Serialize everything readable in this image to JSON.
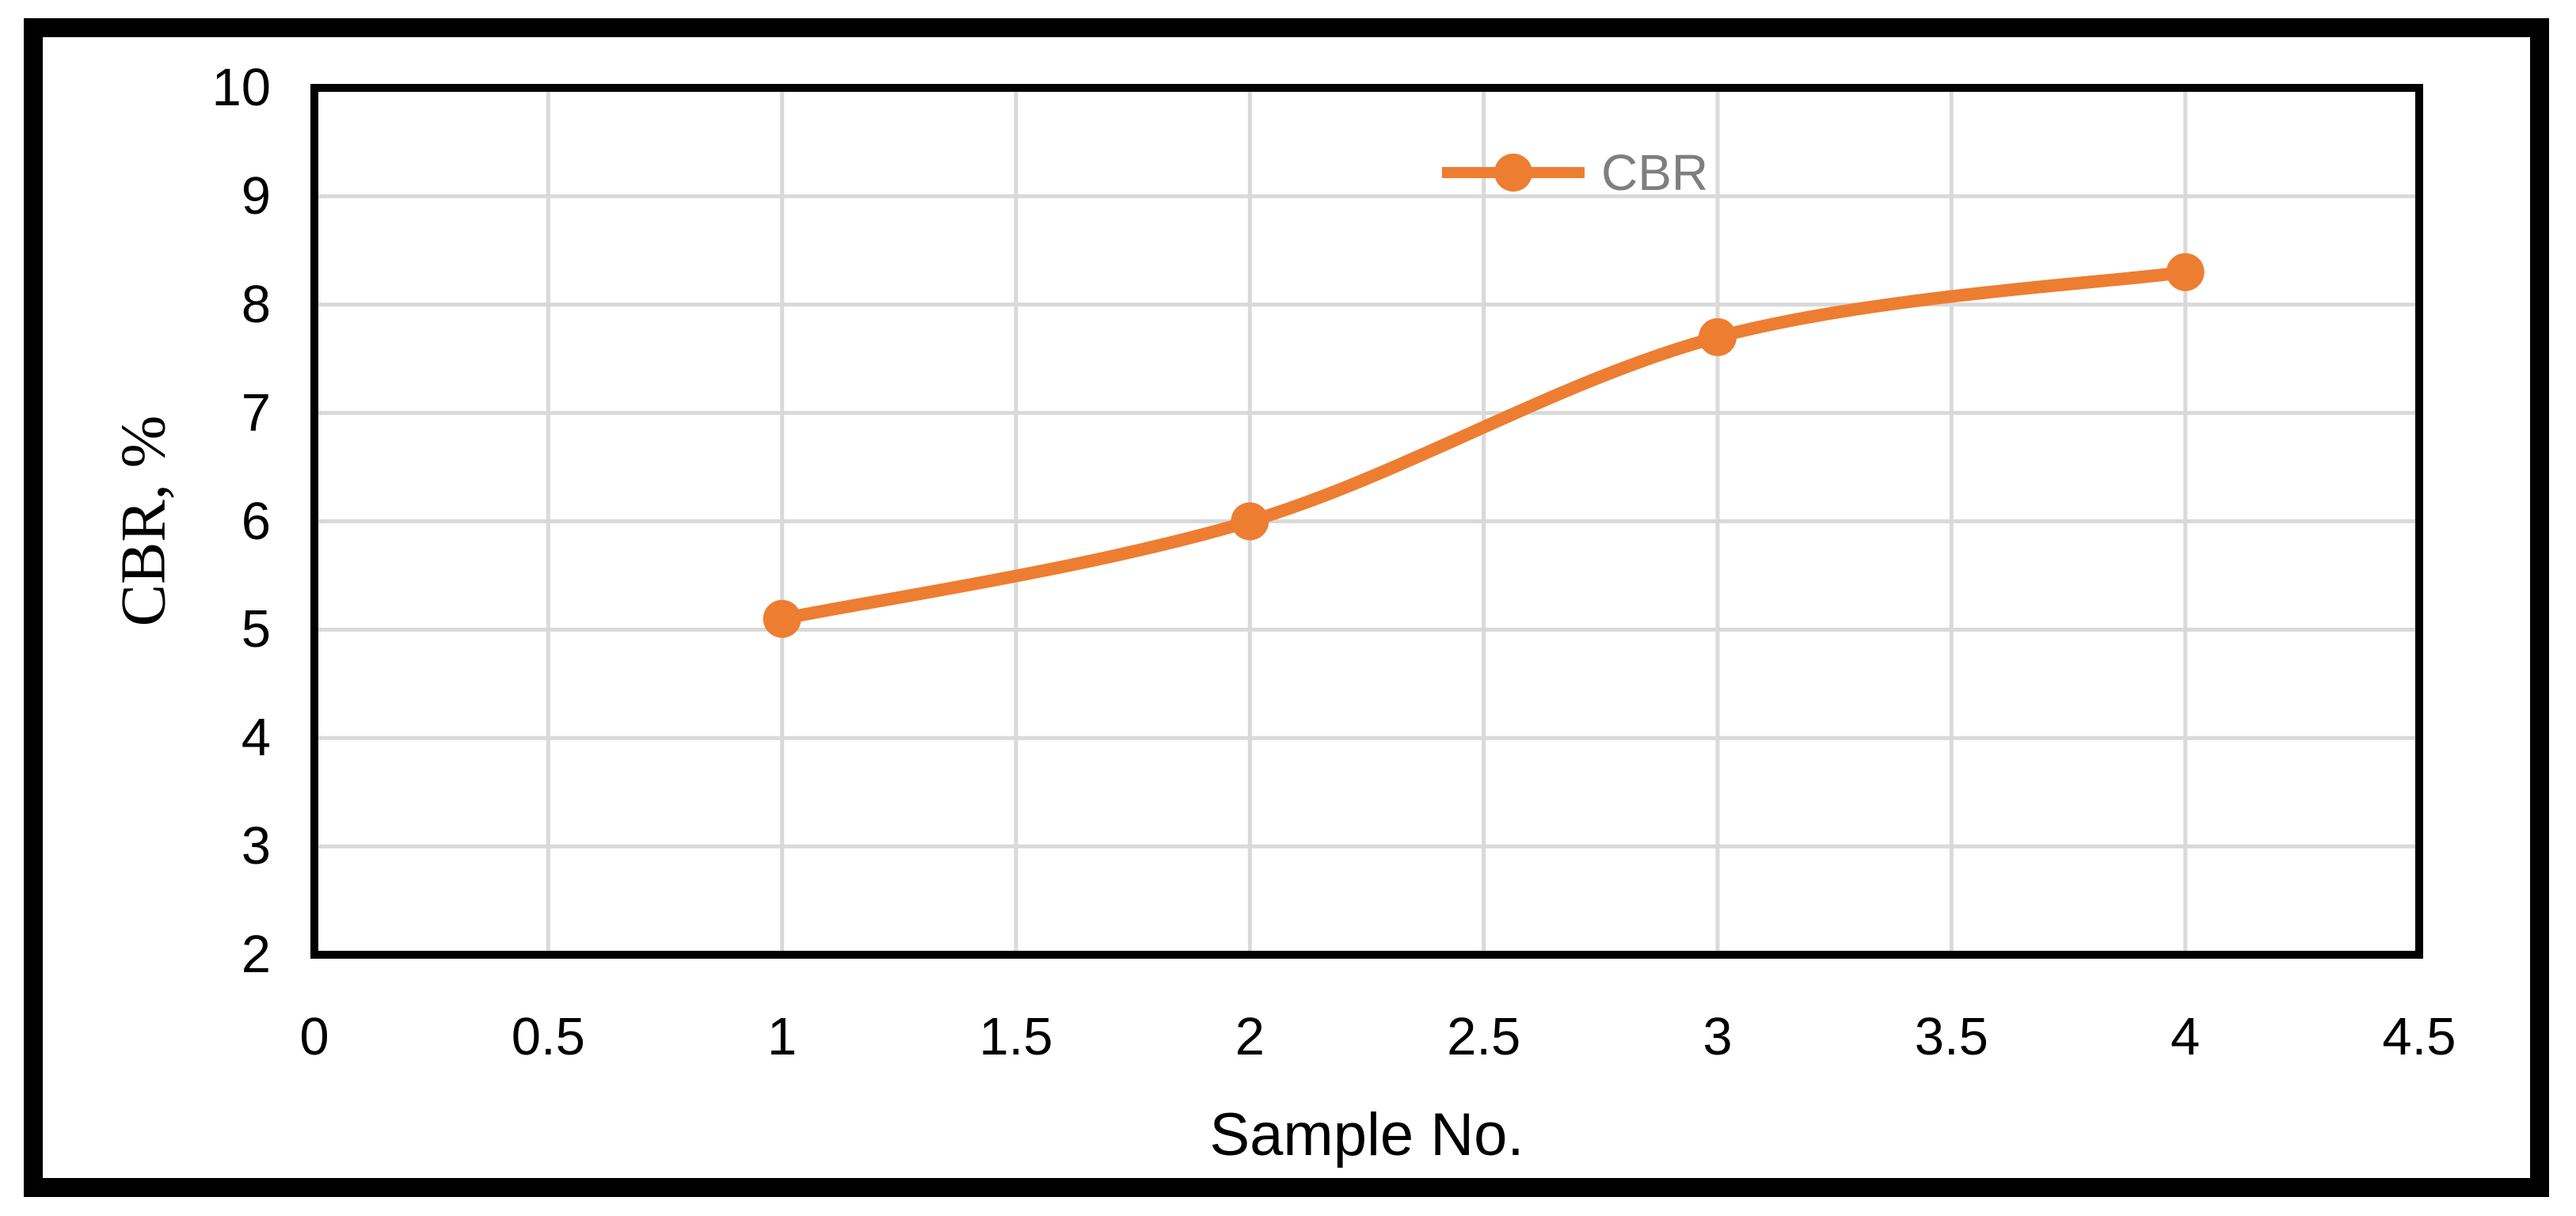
{
  "chart_data": {
    "type": "line",
    "title": "",
    "xlabel": "Sample No.",
    "ylabel": "CBR, %",
    "xlim": [
      0,
      4.5
    ],
    "ylim": [
      2,
      10
    ],
    "x_ticks": [
      "0",
      "0.5",
      "1",
      "1.5",
      "2",
      "2.5",
      "3",
      "3.5",
      "4",
      "4.5"
    ],
    "y_ticks": [
      "2",
      "3",
      "4",
      "5",
      "6",
      "7",
      "8",
      "9",
      "10"
    ],
    "grid": true,
    "legend_position": "top-center-inside",
    "series": [
      {
        "name": "CBR",
        "x": [
          1,
          2,
          3,
          4
        ],
        "values": [
          5.1,
          6.0,
          7.7,
          8.3
        ],
        "color": "#ED7D31",
        "marker": "circle",
        "line_style": "smooth"
      }
    ]
  },
  "legend": {
    "label": "CBR"
  },
  "colors": {
    "series_orange": "#ED7D31",
    "gridline": "#D9D9D9",
    "plot_border": "#000000",
    "outer_frame": "#000000",
    "tick_text": "#000000",
    "legend_text": "#7F7F7F"
  }
}
